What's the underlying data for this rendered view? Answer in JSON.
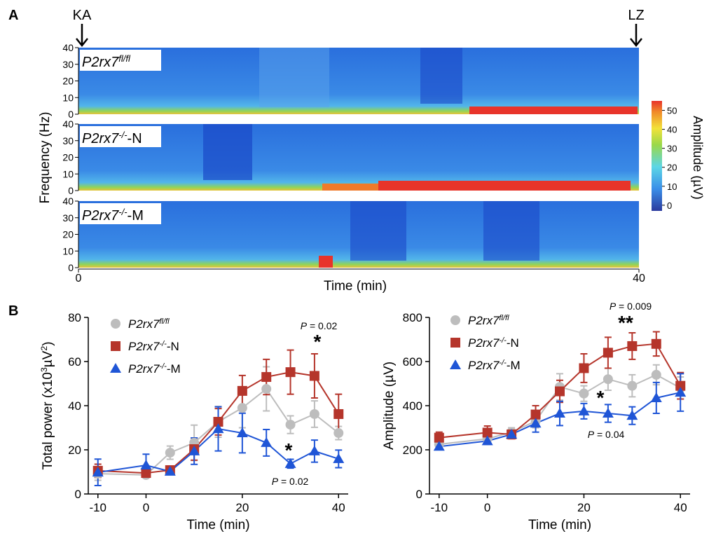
{
  "chart_data": [
    {
      "type": "spectrogram",
      "panel": "A",
      "markers": [
        "KA",
        "LZ"
      ],
      "rows": [
        {
          "text": "P2rx7",
          "sup": "fl/fl"
        },
        {
          "text": "P2rx7",
          "sup": "-/-",
          "suffix": "-N"
        },
        {
          "text": "P2rx7",
          "sup": "-/-",
          "suffix": "-M"
        }
      ],
      "ylabel": "Frequency (Hz)",
      "ylim": [
        0,
        40
      ],
      "yticks": [
        0,
        10,
        20,
        30,
        40
      ],
      "xlabel": "Time (min)",
      "xlim": [
        0,
        40
      ],
      "xticks": [
        0,
        40
      ],
      "colorbar_label": "Amplitude (µV)",
      "clim": [
        -3,
        55
      ],
      "cticks": [
        0,
        10,
        20,
        30,
        40,
        50
      ]
    },
    {
      "type": "line",
      "panel": "B",
      "ylabel": [
        {
          "text": "Total power (x10"
        },
        {
          "text": "3",
          "sup": true
        },
        {
          "text": "µV"
        },
        {
          "text": "2",
          "sup": true
        },
        {
          "text": ")"
        }
      ],
      "xlabel": "Time (min)",
      "x": [
        -10,
        0,
        5,
        10,
        15,
        20,
        25,
        30,
        35,
        40
      ],
      "xlim": [
        -12,
        42
      ],
      "xticks": [
        -10,
        0,
        20,
        40
      ],
      "ylim": [
        0,
        80
      ],
      "yticks": [
        0,
        20,
        40,
        60,
        80
      ],
      "series": [
        {
          "name": "P2rx7",
          "name_sup": "fl/fl",
          "color": "#bdbdbd",
          "marker": "circle",
          "values": [
            9.2,
            8.6,
            18.7,
            23.2,
            32.7,
            39,
            47.6,
            31.4,
            36.2,
            27.6
          ],
          "errors": [
            3,
            1,
            3,
            8,
            7,
            9,
            10,
            4,
            6,
            3
          ]
        },
        {
          "name": "P2rx7",
          "name_sup": "-/-",
          "name_suffix": "-N",
          "color": "#b5352b",
          "marker": "square",
          "values": [
            10.5,
            9.5,
            10.8,
            20.3,
            32.7,
            46.7,
            53,
            55.2,
            53.5,
            36.2
          ],
          "errors": [
            3,
            1,
            1,
            5,
            6,
            7,
            8,
            10,
            10,
            9
          ]
        },
        {
          "name": "P2rx7",
          "name_sup": "-/-",
          "name_suffix": "-M",
          "color": "#1f55d6",
          "marker": "triangle",
          "values": [
            9.8,
            13,
            10.2,
            19.4,
            29.5,
            27.6,
            23.2,
            13.7,
            19.4,
            15.9
          ],
          "errors": [
            6,
            5,
            1,
            6,
            10,
            9,
            6,
            2,
            5,
            4
          ]
        }
      ],
      "annotations": [
        {
          "italic": "P",
          "text": " = 0.02"
        },
        {
          "text": "*"
        },
        {
          "text": "*"
        },
        {
          "italic": "P",
          "text": " = 0.02"
        }
      ]
    },
    {
      "type": "line",
      "ylabel": [
        {
          "text": "Amplitude (µV)"
        }
      ],
      "xlabel": "Time (min)",
      "x": [
        -10,
        0,
        5,
        10,
        15,
        20,
        25,
        30,
        35,
        40
      ],
      "xlim": [
        -12,
        42
      ],
      "xticks": [
        -10,
        0,
        20,
        40
      ],
      "ylim": [
        0,
        800
      ],
      "yticks": [
        0,
        200,
        400,
        600,
        800
      ],
      "series": [
        {
          "name": "P2rx7",
          "name_sup": "fl/fl",
          "color": "#bdbdbd",
          "marker": "circle",
          "values": [
            225,
            250,
            280,
            330,
            485,
            455,
            520,
            490,
            540,
            480
          ],
          "errors": [
            20,
            25,
            20,
            30,
            60,
            35,
            50,
            50,
            45,
            50
          ]
        },
        {
          "name": "P2rx7",
          "name_sup": "-/-",
          "name_suffix": "-N",
          "color": "#b5352b",
          "marker": "square",
          "values": [
            255,
            278,
            270,
            360,
            465,
            570,
            640,
            670,
            680,
            490
          ],
          "errors": [
            25,
            30,
            20,
            40,
            50,
            65,
            70,
            60,
            55,
            60
          ]
        },
        {
          "name": "P2rx7",
          "name_sup": "-/-",
          "name_suffix": "-M",
          "color": "#1f55d6",
          "marker": "triangle",
          "values": [
            215,
            240,
            270,
            320,
            365,
            375,
            365,
            355,
            435,
            460
          ],
          "errors": [
            15,
            15,
            15,
            40,
            55,
            35,
            40,
            40,
            70,
            85
          ]
        }
      ],
      "annotations": [
        {
          "italic": "P",
          "text": " = 0.009"
        },
        {
          "text": "**"
        },
        {
          "text": "*"
        },
        {
          "italic": "P",
          "text": " = 0.04"
        }
      ]
    }
  ]
}
